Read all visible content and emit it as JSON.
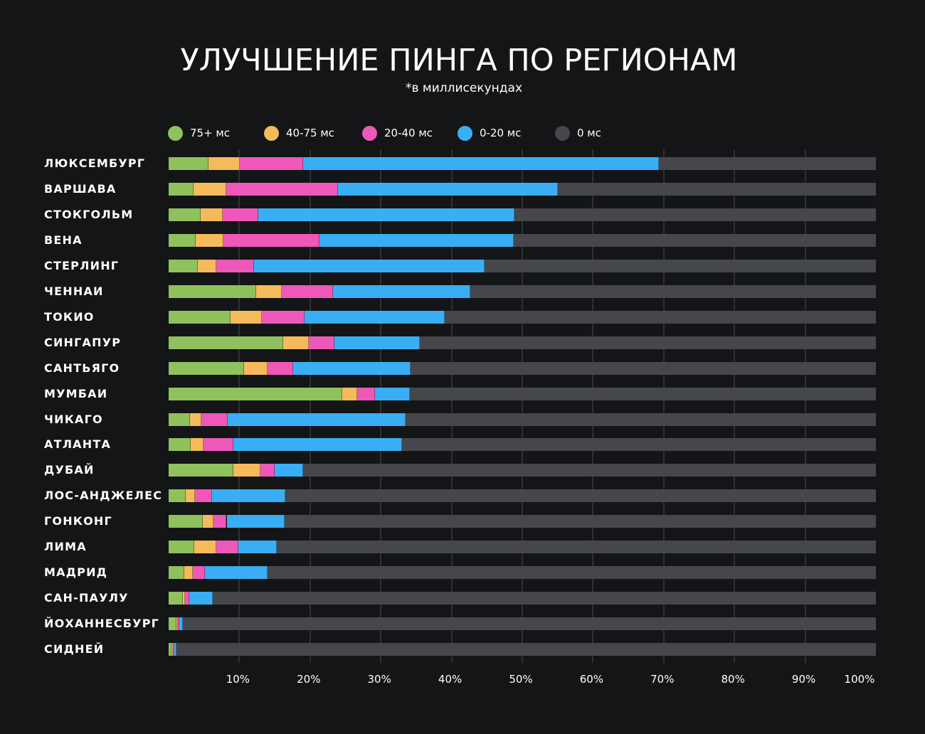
{
  "chart_data": {
    "type": "bar",
    "orientation": "horizontal",
    "stacked": true,
    "title": "УЛУЧШЕНИЕ ПИНГА ПО РЕГИОНАМ",
    "subtitle": "*в миллисекундах",
    "xlim": [
      0,
      100
    ],
    "x_ticks": [
      "10%",
      "20%",
      "30%",
      "40%",
      "50%",
      "60%",
      "70%",
      "80%",
      "90%",
      "100%"
    ],
    "grid": true,
    "legend_position": "top",
    "background": "#141517",
    "categories": [
      "ЛЮКСЕМБУРГ",
      "ВАРШАВА",
      "СТОКГОЛЬМ",
      "ВЕНА",
      "СТЕРЛИНГ",
      "ЧЕННАИ",
      "ТОКИО",
      "СИНГАПУР",
      "САНТЬЯГО",
      "МУМБАИ",
      "ЧИКАГО",
      "АТЛАНТА",
      "ДУБАЙ",
      "ЛОС-АНДЖЕЛЕС",
      "ГОНКОНГ",
      "ЛИМА",
      "МАДРИД",
      "САН-ПАУЛУ",
      "ЙОХАННЕСБУРГ",
      "СИДНЕЙ"
    ],
    "series": [
      {
        "name": "75+ мс",
        "color": "#8fc15d",
        "values": [
          5.6,
          3.5,
          4.5,
          3.8,
          4.1,
          12.4,
          8.8,
          16.2,
          10.7,
          24.5,
          3.0,
          3.1,
          9.2,
          2.4,
          4.8,
          3.6,
          2.2,
          2.0,
          1.1,
          0.4
        ]
      },
      {
        "name": "40-75 мс",
        "color": "#f5bb5a",
        "values": [
          4.5,
          4.6,
          3.1,
          3.9,
          2.6,
          3.6,
          4.4,
          3.6,
          3.3,
          2.2,
          1.6,
          1.8,
          3.8,
          1.3,
          1.5,
          3.1,
          1.2,
          0.3,
          0.2,
          0.2
        ]
      },
      {
        "name": "20-40 мс",
        "color": "#ee58b9",
        "values": [
          8.9,
          15.8,
          5.1,
          13.6,
          5.4,
          7.2,
          6.0,
          3.6,
          3.6,
          2.5,
          3.8,
          4.3,
          2.0,
          2.4,
          1.9,
          3.2,
          1.7,
          0.6,
          0.2,
          0.2
        ]
      },
      {
        "name": "0-20 мс",
        "color": "#3aaef5",
        "values": [
          50.3,
          31.1,
          36.2,
          27.5,
          32.6,
          19.5,
          19.8,
          12.1,
          16.6,
          4.9,
          25.1,
          23.8,
          4.0,
          10.4,
          8.2,
          5.4,
          8.9,
          3.3,
          0.5,
          0.3
        ]
      },
      {
        "name": "0 мс",
        "color": "#45474d",
        "values": [
          30.7,
          45.0,
          51.1,
          51.2,
          55.3,
          57.3,
          61.0,
          64.5,
          65.8,
          65.9,
          66.5,
          67.0,
          81.0,
          83.5,
          83.6,
          84.7,
          86.0,
          93.8,
          98.0,
          98.9
        ]
      }
    ]
  }
}
